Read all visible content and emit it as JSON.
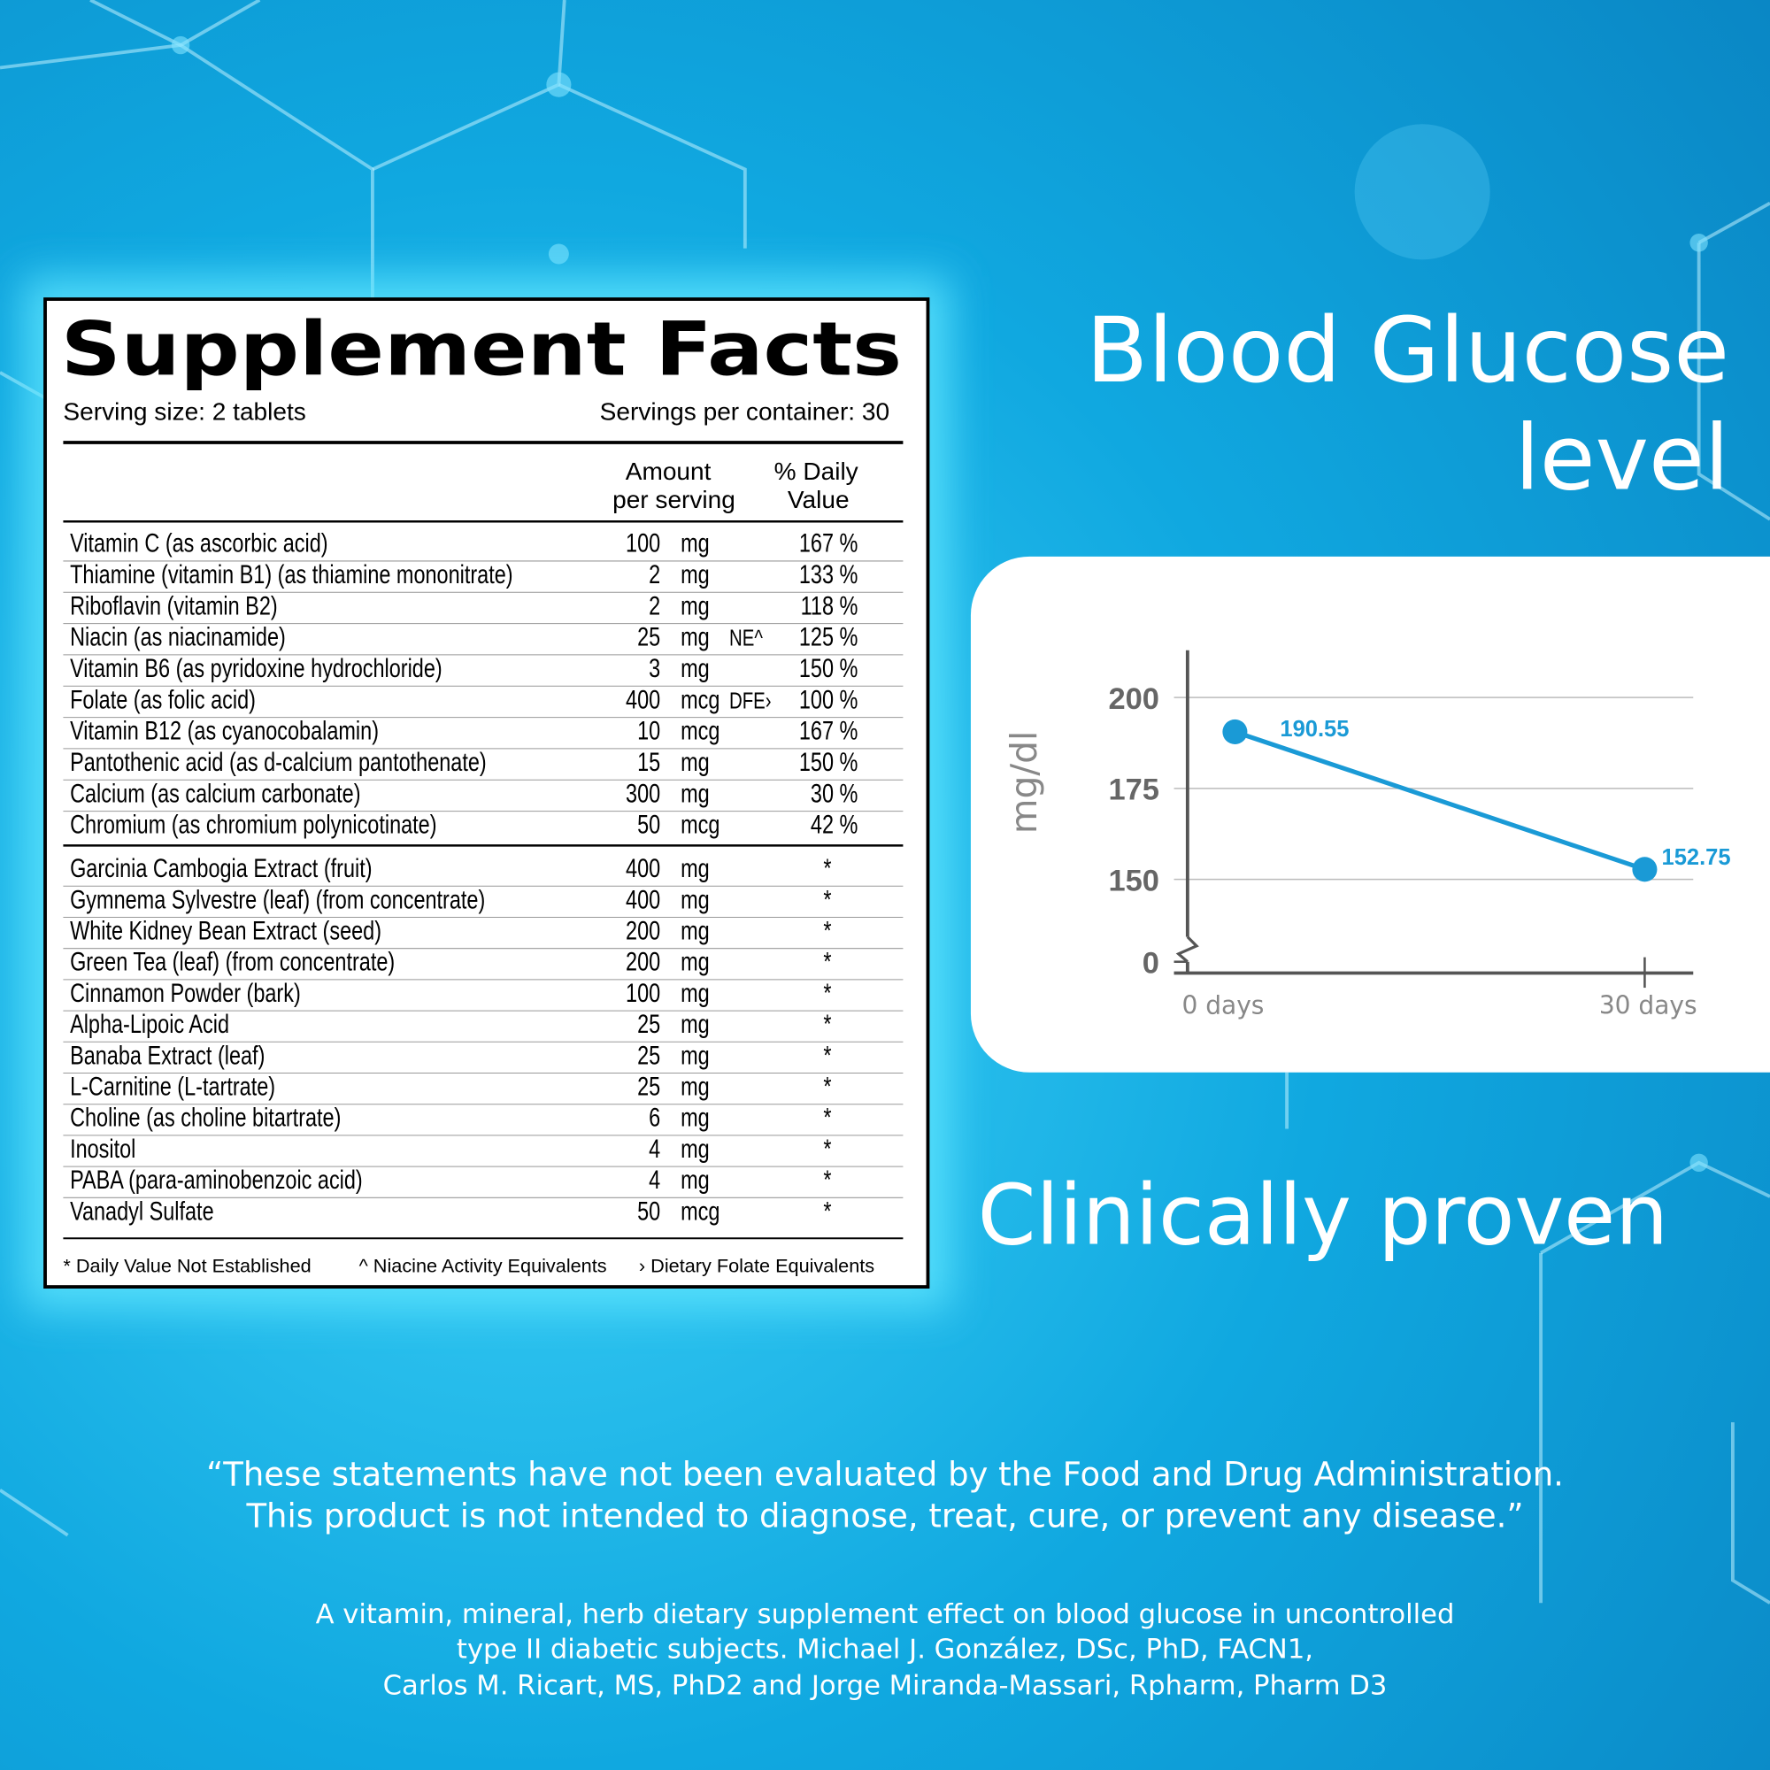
{
  "supplement_facts": {
    "title": "Supplement Facts",
    "serving_size": "Serving size: 2 tablets",
    "servings_per_container": "Servings per container: 30",
    "amount_header": [
      "Amount",
      "per serving"
    ],
    "dv_header": [
      "% Daily",
      "Value"
    ],
    "groups": [
      [
        {
          "name": "Vitamin C (as ascorbic acid)",
          "amount": "100",
          "unit": "mg",
          "dv": "167 %"
        },
        {
          "name": "Thiamine (vitamin B1) (as thiamine mononitrate)",
          "amount": "2",
          "unit": "mg",
          "dv": "133 %"
        },
        {
          "name": "Riboflavin (vitamin B2)",
          "amount": "2",
          "unit": "mg",
          "dv": "118 %"
        },
        {
          "name": "Niacin (as niacinamide)",
          "amount": "25",
          "unit": "mg",
          "note": "NE^",
          "dv": "125 %"
        },
        {
          "name": "Vitamin B6 (as pyridoxine hydrochloride)",
          "amount": "3",
          "unit": "mg",
          "dv": "150 %"
        },
        {
          "name": "Folate (as folic acid)",
          "amount": "400",
          "unit": "mcg",
          "note": "DFE›",
          "dv": "100 %"
        },
        {
          "name": "Vitamin B12 (as cyanocobalamin)",
          "amount": "10",
          "unit": "mcg",
          "dv": "167 %"
        },
        {
          "name": "Pantothenic acid (as d-calcium pantothenate)",
          "amount": "15",
          "unit": "mg",
          "dv": "150 %"
        },
        {
          "name": "Calcium (as calcium carbonate)",
          "amount": "300",
          "unit": "mg",
          "dv": "30 %"
        },
        {
          "name": "Chromium (as chromium polynicotinate)",
          "amount": "50",
          "unit": "mcg",
          "dv": "42 %"
        }
      ],
      [
        {
          "name": "Garcinia Cambogia Extract (fruit)",
          "amount": "400",
          "unit": "mg",
          "dv": "*"
        },
        {
          "name": "Gymnema Sylvestre (leaf) (from concentrate)",
          "amount": "400",
          "unit": "mg",
          "dv": "*"
        },
        {
          "name": "White Kidney Bean Extract (seed)",
          "amount": "200",
          "unit": "mg",
          "dv": "*"
        },
        {
          "name": "Green Tea (leaf) (from concentrate)",
          "amount": "200",
          "unit": "mg",
          "dv": "*"
        },
        {
          "name": "Cinnamon Powder (bark)",
          "amount": "100",
          "unit": "mg",
          "dv": "*"
        },
        {
          "name": "Alpha-Lipoic Acid",
          "amount": "25",
          "unit": "mg",
          "dv": "*"
        },
        {
          "name": "Banaba Extract (leaf)",
          "amount": "25",
          "unit": "mg",
          "dv": "*"
        },
        {
          "name": "L-Carnitine (L-tartrate)",
          "amount": "25",
          "unit": "mg",
          "dv": "*"
        },
        {
          "name": "Choline (as choline bitartrate)",
          "amount": "6",
          "unit": "mg",
          "dv": "*"
        },
        {
          "name": "Inositol",
          "amount": "4",
          "unit": "mg",
          "dv": "*"
        },
        {
          "name": "PABA (para-aminobenzoic acid)",
          "amount": "4",
          "unit": "mg",
          "dv": "*"
        },
        {
          "name": "Vanadyl Sulfate",
          "amount": "50",
          "unit": "mcg",
          "dv": "*"
        }
      ]
    ],
    "footnotes": [
      "* Daily Value Not Established",
      "^ Niacine Activity Equivalents",
      "› Dietary Folate Equivalents"
    ]
  },
  "headline": [
    "Blood Glucose",
    "level"
  ],
  "chart_data": {
    "type": "line",
    "ylabel": "mg/dl",
    "categories": [
      "0 days",
      "30 days"
    ],
    "series": [
      {
        "name": "Blood glucose",
        "color": "#1a9ad6",
        "values": [
          190.55,
          152.75
        ]
      }
    ],
    "ylim": [
      0,
      213
    ],
    "yticks": [
      0,
      150,
      175,
      200
    ],
    "axis_break": [
      0,
      150
    ],
    "grid": true
  },
  "tagline": "Clinically proven",
  "disclaimer": [
    "“These statements have not been evaluated by the Food and Drug Administration.",
    "This product is not intended to diagnose, treat, cure, or prevent any disease.”"
  ],
  "citation": [
    "A vitamin, mineral, herb dietary supplement effect on blood glucose in uncontrolled",
    "type II diabetic subjects. Michael J. González, DSc, PhD, FACN1,",
    "Carlos M. Ricart, MS, PhD2 and Jorge  Miranda-Massari, Rpharm, Pharm D3"
  ]
}
